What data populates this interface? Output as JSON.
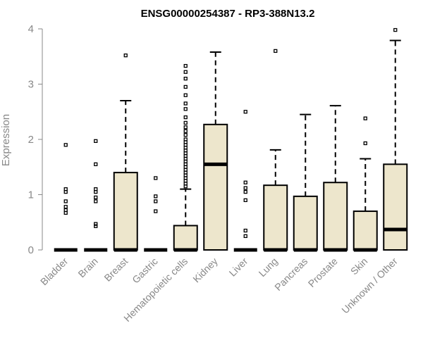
{
  "chart_data": {
    "type": "box",
    "title": "ENSG00000254387 - RP3-388N13.2",
    "xlabel": "",
    "ylabel": "Expression",
    "ylim": [
      0,
      4
    ],
    "yticks": [
      0,
      1,
      2,
      3,
      4
    ],
    "box_fill": "#ede6cc",
    "box_stroke": "#000000",
    "axis_color": "#888888",
    "categories": [
      "Bladder",
      "Brain",
      "Breast",
      "Gastric",
      "Hematopoietic cells",
      "Kidney",
      "Liver",
      "Lung",
      "Pancreas",
      "Prostate",
      "Skin",
      "Unknown / Other"
    ],
    "boxes": [
      {
        "category": "Bladder",
        "q1": 0,
        "median": 0,
        "q3": 0,
        "whisker_low": 0,
        "whisker_high": 0,
        "outliers": [
          0.67,
          0.72,
          0.78,
          0.88,
          1.05,
          1.1,
          1.9
        ]
      },
      {
        "category": "Brain",
        "q1": 0,
        "median": 0,
        "q3": 0,
        "whisker_low": 0,
        "whisker_high": 0,
        "outliers": [
          0.43,
          0.47,
          0.88,
          0.95,
          1.05,
          1.1,
          1.55,
          1.97
        ]
      },
      {
        "category": "Breast",
        "q1": 0,
        "median": 0,
        "q3": 1.4,
        "whisker_low": 0,
        "whisker_high": 2.7,
        "outliers": [
          3.52
        ]
      },
      {
        "category": "Gastric",
        "q1": 0,
        "median": 0,
        "q3": 0,
        "whisker_low": 0,
        "whisker_high": 0,
        "outliers": [
          0.7,
          0.88,
          0.97,
          1.3
        ]
      },
      {
        "category": "Hematopoietic cells",
        "q1": 0,
        "median": 0,
        "q3": 0.44,
        "whisker_low": 0,
        "whisker_high": 1.1,
        "outliers": [
          1.15,
          1.2,
          1.25,
          1.3,
          1.35,
          1.4,
          1.45,
          1.5,
          1.55,
          1.6,
          1.65,
          1.7,
          1.75,
          1.8,
          1.85,
          1.9,
          1.95,
          2.0,
          2.08,
          2.15,
          2.22,
          2.3,
          2.4,
          2.55,
          2.65,
          2.8,
          2.95,
          3.1,
          3.22,
          3.33
        ]
      },
      {
        "category": "Kidney",
        "q1": 0,
        "median": 1.55,
        "q3": 2.27,
        "whisker_low": 0,
        "whisker_high": 3.58,
        "outliers": []
      },
      {
        "category": "Liver",
        "q1": 0,
        "median": 0,
        "q3": 0,
        "whisker_low": 0,
        "whisker_high": 0,
        "outliers": [
          0.25,
          0.35,
          0.9,
          1.05,
          1.12,
          1.22,
          2.5
        ]
      },
      {
        "category": "Lung",
        "q1": 0,
        "median": 0,
        "q3": 1.17,
        "whisker_low": 0,
        "whisker_high": 1.81,
        "outliers": [
          3.6
        ]
      },
      {
        "category": "Pancreas",
        "q1": 0,
        "median": 0,
        "q3": 0.97,
        "whisker_low": 0,
        "whisker_high": 2.45,
        "outliers": []
      },
      {
        "category": "Prostate",
        "q1": 0,
        "median": 0,
        "q3": 1.22,
        "whisker_low": 0,
        "whisker_high": 2.61,
        "outliers": []
      },
      {
        "category": "Skin",
        "q1": 0,
        "median": 0,
        "q3": 0.7,
        "whisker_low": 0,
        "whisker_high": 1.65,
        "outliers": [
          1.93,
          2.38
        ]
      },
      {
        "category": "Unknown / Other",
        "q1": 0,
        "median": 0.37,
        "q3": 1.55,
        "whisker_low": 0,
        "whisker_high": 3.79,
        "outliers": [
          3.98
        ]
      }
    ]
  }
}
